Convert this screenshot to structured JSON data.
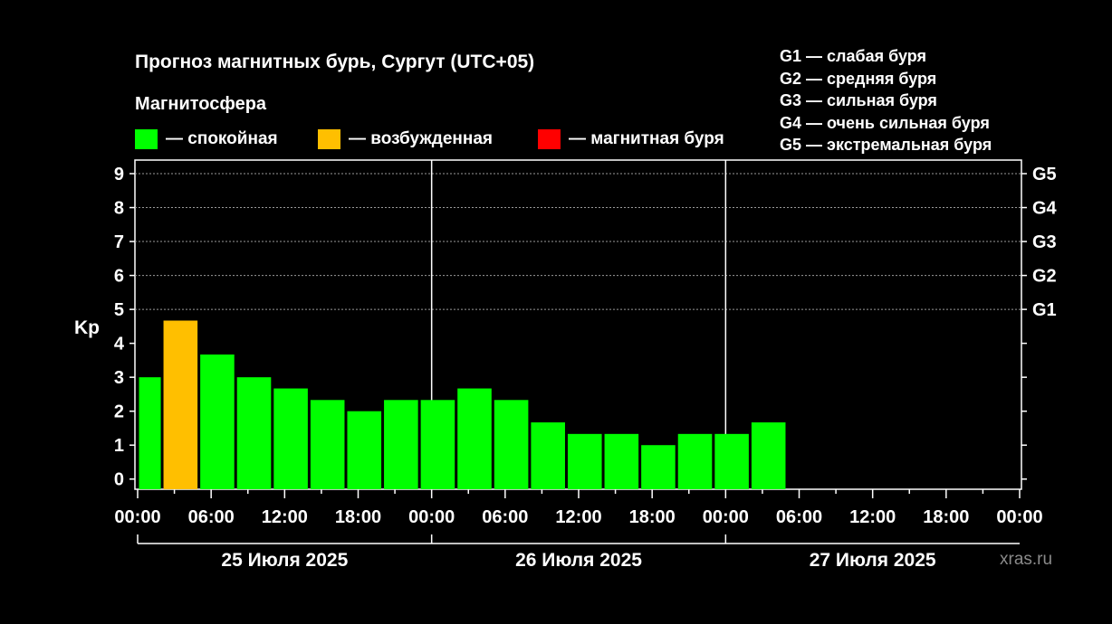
{
  "title": "Прогноз магнитных бурь, Сургут (UTC+05)",
  "subtitle": "Магнитосфера",
  "legend": [
    {
      "label": "— спокойная",
      "color": "#00ff00"
    },
    {
      "label": "— возбужденная",
      "color": "#ffbf00"
    },
    {
      "label": "— магнитная буря",
      "color": "#ff0000"
    }
  ],
  "g_legend": [
    "G1 — слабая буря",
    "G2 — средняя буря",
    "G3 — сильная буря",
    "G4 — очень сильная буря",
    "G5 — экстремальная буря"
  ],
  "watermark": "xras.ru",
  "chart_data": {
    "type": "bar",
    "ylabel": "Kp",
    "ylim": [
      -0.3,
      9.4
    ],
    "yticks": [
      "0",
      "1",
      "2",
      "3",
      "4",
      "5",
      "6",
      "7",
      "8",
      "9"
    ],
    "right_ticks": [
      {
        "value": 5,
        "label": "G1"
      },
      {
        "value": 6,
        "label": "G2"
      },
      {
        "value": 7,
        "label": "G3"
      },
      {
        "value": 8,
        "label": "G4"
      },
      {
        "value": 9,
        "label": "G5"
      }
    ],
    "x_hours_range": [
      0,
      72
    ],
    "xticks": [
      "00:00",
      "06:00",
      "12:00",
      "18:00",
      "00:00",
      "06:00",
      "12:00",
      "18:00",
      "00:00",
      "06:00",
      "12:00",
      "18:00",
      "00:00"
    ],
    "days": [
      "25 Июля 2025",
      "26 Июля 2025",
      "27 Июля 2025"
    ],
    "grid": "dashed horizontal lines at Kp 5-9",
    "bars": [
      {
        "start": 0,
        "end": 2,
        "value": 3.0,
        "color": "#00ff00"
      },
      {
        "start": 2,
        "end": 5,
        "value": 4.67,
        "color": "#ffbf00"
      },
      {
        "start": 5,
        "end": 8,
        "value": 3.67,
        "color": "#00ff00"
      },
      {
        "start": 8,
        "end": 11,
        "value": 3.0,
        "color": "#00ff00"
      },
      {
        "start": 11,
        "end": 14,
        "value": 2.67,
        "color": "#00ff00"
      },
      {
        "start": 14,
        "end": 17,
        "value": 2.33,
        "color": "#00ff00"
      },
      {
        "start": 17,
        "end": 20,
        "value": 2.0,
        "color": "#00ff00"
      },
      {
        "start": 20,
        "end": 23,
        "value": 2.33,
        "color": "#00ff00"
      },
      {
        "start": 23,
        "end": 26,
        "value": 2.33,
        "color": "#00ff00"
      },
      {
        "start": 26,
        "end": 29,
        "value": 2.67,
        "color": "#00ff00"
      },
      {
        "start": 29,
        "end": 32,
        "value": 2.33,
        "color": "#00ff00"
      },
      {
        "start": 32,
        "end": 35,
        "value": 1.67,
        "color": "#00ff00"
      },
      {
        "start": 35,
        "end": 38,
        "value": 1.33,
        "color": "#00ff00"
      },
      {
        "start": 38,
        "end": 41,
        "value": 1.33,
        "color": "#00ff00"
      },
      {
        "start": 41,
        "end": 44,
        "value": 1.0,
        "color": "#00ff00"
      },
      {
        "start": 44,
        "end": 47,
        "value": 1.33,
        "color": "#00ff00"
      },
      {
        "start": 47,
        "end": 50,
        "value": 1.33,
        "color": "#00ff00"
      },
      {
        "start": 50,
        "end": 53,
        "value": 1.67,
        "color": "#00ff00"
      }
    ]
  }
}
